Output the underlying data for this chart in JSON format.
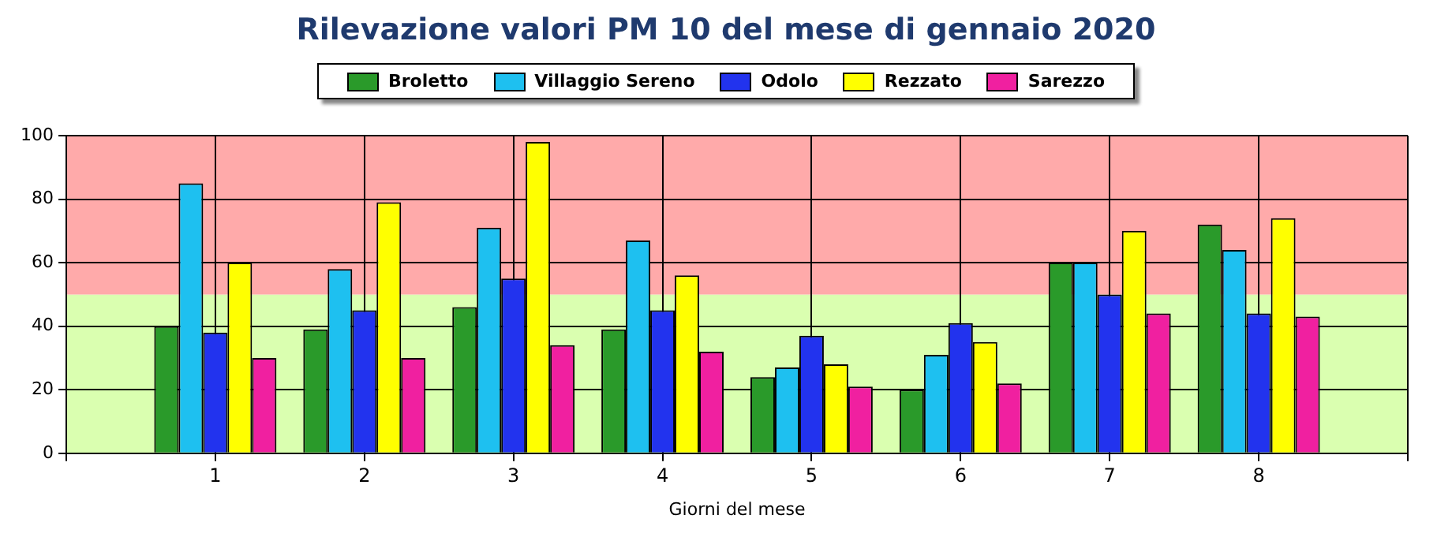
{
  "chart_data": {
    "type": "bar",
    "title": "Rilevazione valori PM 10 del mese di gennaio 2020",
    "xlabel": "Giorni del mese",
    "categories": [
      "1",
      "2",
      "3",
      "4",
      "5",
      "6",
      "7",
      "8"
    ],
    "series": [
      {
        "name": "Broletto",
        "color": "#2a9a2a",
        "values": [
          40,
          39,
          46,
          39,
          24,
          20,
          60,
          72
        ]
      },
      {
        "name": "Villaggio Sereno",
        "color": "#1ec0f0",
        "values": [
          85,
          58,
          71,
          67,
          27,
          31,
          60,
          64
        ]
      },
      {
        "name": "Odolo",
        "color": "#2233ee",
        "values": [
          38,
          45,
          55,
          45,
          37,
          41,
          50,
          44
        ]
      },
      {
        "name": "Rezzato",
        "color": "#ffff00",
        "values": [
          60,
          79,
          98,
          56,
          28,
          35,
          70,
          74
        ]
      },
      {
        "name": "Sarezzo",
        "color": "#f020a0",
        "values": [
          30,
          30,
          34,
          32,
          21,
          22,
          44,
          43
        ]
      }
    ],
    "ylim": [
      0,
      100
    ],
    "yticks": [
      0,
      20,
      40,
      60,
      80,
      100
    ],
    "grid": true,
    "legend": "top",
    "bands": [
      {
        "axis": "y",
        "from": 0,
        "to": 50,
        "color": "#daffb0"
      },
      {
        "axis": "y",
        "from": 50,
        "to": 100,
        "color": "#ffaaaa"
      }
    ]
  }
}
